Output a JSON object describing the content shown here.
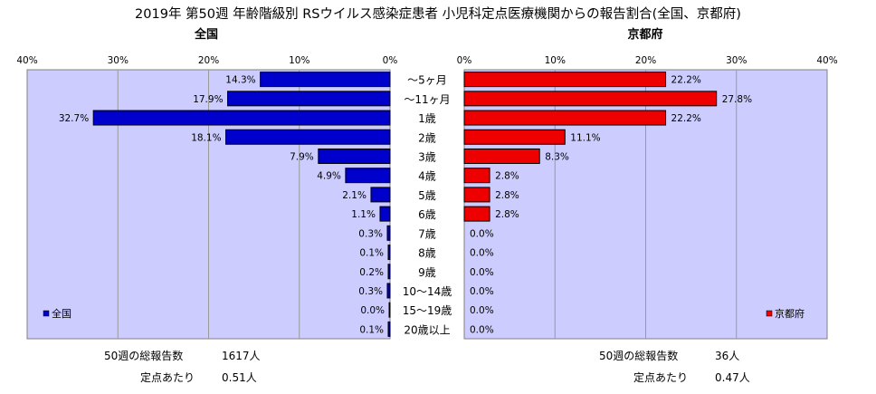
{
  "title": "2019年 第50週 年齢階級別 RSウイルス感染症患者 小児科定点医療機関からの報告割合(全国、京都府)",
  "chart_data": {
    "type": "bar",
    "orientation": "horizontal",
    "categories": [
      "～5ヶ月",
      "～11ヶ月",
      "1歳",
      "2歳",
      "3歳",
      "4歳",
      "5歳",
      "6歳",
      "7歳",
      "8歳",
      "9歳",
      "10～14歳",
      "15～19歳",
      "20歳以上"
    ],
    "xlim": [
      0,
      40
    ],
    "ticks": [
      0,
      10,
      20,
      30,
      40
    ],
    "tick_suffix": "%",
    "grid": true,
    "series": [
      {
        "name": "全国",
        "heading": "全国",
        "color": "#0000cc",
        "legend_label": "全国",
        "legend_position": "bottom-left",
        "values": [
          14.3,
          17.9,
          32.7,
          18.1,
          7.9,
          4.9,
          2.1,
          1.1,
          0.3,
          0.1,
          0.2,
          0.3,
          0.0,
          0.1
        ],
        "labels": [
          "14.3%",
          "17.9%",
          "32.7%",
          "18.1%",
          "7.9%",
          "4.9%",
          "2.1%",
          "1.1%",
          "0.3%",
          "0.1%",
          "0.2%",
          "0.3%",
          "0.0%",
          "0.1%"
        ]
      },
      {
        "name": "京都府",
        "heading": "京都府",
        "color": "#ee0000",
        "legend_label": "京都府",
        "legend_position": "bottom-right",
        "values": [
          22.2,
          27.8,
          22.2,
          11.1,
          8.3,
          2.8,
          2.8,
          2.8,
          0.0,
          0.0,
          0.0,
          0.0,
          0.0,
          0.0
        ],
        "labels": [
          "22.2%",
          "27.8%",
          "22.2%",
          "11.1%",
          "8.3%",
          "2.8%",
          "2.8%",
          "2.8%",
          "0.0%",
          "0.0%",
          "0.0%",
          "0.0%",
          "0.0%",
          "0.0%"
        ]
      }
    ]
  },
  "footer": {
    "national": {
      "total_label": "50週の総報告数",
      "total_value": "1617人",
      "per_site_label": "定点あたり",
      "per_site_value": "0.51人"
    },
    "kyoto": {
      "total_label": "50週の総報告数",
      "total_value": "36人",
      "per_site_label": "定点あたり",
      "per_site_value": "0.47人"
    }
  }
}
